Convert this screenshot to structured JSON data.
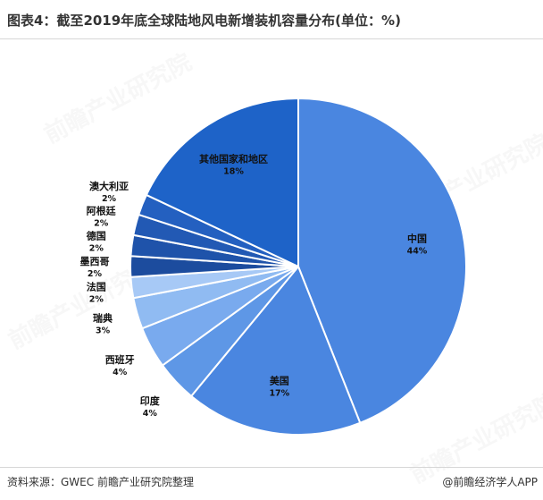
{
  "header": {
    "title": "图表4：截至2019年底全球陆地风电新增装机容量分布(单位：%)"
  },
  "footer": {
    "source": "资料来源：GWEC 前瞻产业研究院整理",
    "credit": "@前瞻经济学人APP"
  },
  "watermark": {
    "text": "前瞻产业研究院"
  },
  "chart_data": {
    "type": "pie",
    "title": "图表4：截至2019年底全球陆地风电新增装机容量分布(单位：%)",
    "unit": "%",
    "slices": [
      {
        "label": "中国",
        "value": 44,
        "value_label": "44%",
        "color": "#4a86e0"
      },
      {
        "label": "美国",
        "value": 17,
        "value_label": "17%",
        "color": "#4a86e0"
      },
      {
        "label": "印度",
        "value": 4,
        "value_label": "4%",
        "color": "#5e97e6"
      },
      {
        "label": "西班牙",
        "value": 4,
        "value_label": "4%",
        "color": "#79aaee"
      },
      {
        "label": "瑞典",
        "value": 3,
        "value_label": "3%",
        "color": "#90bbf2"
      },
      {
        "label": "法国",
        "value": 2,
        "value_label": "2%",
        "color": "#a7c9f6"
      },
      {
        "label": "墨西哥",
        "value": 2,
        "value_label": "2%",
        "color": "#1c4c9e"
      },
      {
        "label": "德国",
        "value": 2,
        "value_label": "2%",
        "color": "#1f53aa"
      },
      {
        "label": "阿根廷",
        "value": 2,
        "value_label": "2%",
        "color": "#2259b4"
      },
      {
        "label": "澳大利亚",
        "value": 2,
        "value_label": "2%",
        "color": "#2460c0"
      },
      {
        "label": "其他国家和地区",
        "value": 18,
        "value_label": "18%",
        "color": "#1e63c8"
      }
    ]
  }
}
